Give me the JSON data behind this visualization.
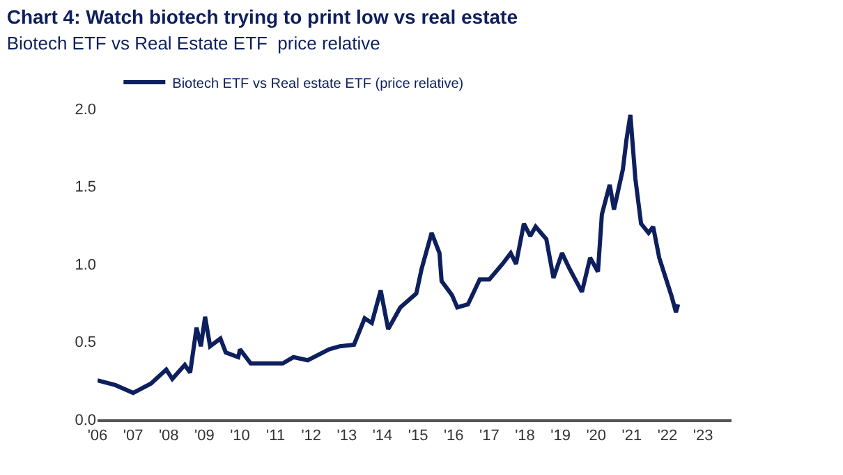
{
  "chart_data": {
    "type": "line",
    "title": "Chart 4: Watch biotech trying to print low vs real estate",
    "subtitle": "Biotech ETF vs Real Estate ETF  price relative",
    "x": [
      2006.0,
      2006.5,
      2007.0,
      2007.5,
      2007.93,
      2008.1,
      2008.45,
      2008.6,
      2008.78,
      2008.9,
      2009.02,
      2009.16,
      2009.45,
      2009.6,
      2009.95,
      2010.0,
      2010.3,
      2011.2,
      2011.5,
      2011.9,
      2012.5,
      2012.8,
      2013.2,
      2013.5,
      2013.7,
      2013.95,
      2014.16,
      2014.5,
      2014.95,
      2015.1,
      2015.38,
      2015.6,
      2015.66,
      2015.95,
      2016.1,
      2016.4,
      2016.73,
      2017.0,
      2017.37,
      2017.6,
      2017.75,
      2017.97,
      2018.15,
      2018.3,
      2018.6,
      2018.8,
      2019.04,
      2019.25,
      2019.6,
      2019.83,
      2020.05,
      2020.16,
      2020.38,
      2020.5,
      2020.75,
      2020.85,
      2020.96,
      2021.1,
      2021.26,
      2021.47,
      2021.6,
      2021.77,
      2021.98,
      2022.12,
      2022.24,
      2022.3
    ],
    "series": [
      {
        "name": "Biotech ETF vs Real estate ETF (price relative)",
        "color": "#0d1f5c",
        "values": [
          0.25,
          0.22,
          0.17,
          0.23,
          0.32,
          0.26,
          0.35,
          0.3,
          0.59,
          0.47,
          0.66,
          0.47,
          0.52,
          0.43,
          0.4,
          0.45,
          0.36,
          0.36,
          0.4,
          0.38,
          0.45,
          0.47,
          0.48,
          0.65,
          0.62,
          0.83,
          0.58,
          0.72,
          0.81,
          0.97,
          1.2,
          1.07,
          0.89,
          0.8,
          0.72,
          0.74,
          0.9,
          0.9,
          1.0,
          1.07,
          1.0,
          1.26,
          1.18,
          1.24,
          1.16,
          0.91,
          1.07,
          0.97,
          0.82,
          1.04,
          0.95,
          1.32,
          1.51,
          1.35,
          1.61,
          1.8,
          1.96,
          1.55,
          1.26,
          1.2,
          1.24,
          1.04,
          0.89,
          0.79,
          0.69,
          0.74
        ]
      }
    ],
    "xlim": [
      2006,
      2023.8
    ],
    "xticks": [
      {
        "value": 2006,
        "label": "'06"
      },
      {
        "value": 2007,
        "label": "'07"
      },
      {
        "value": 2008,
        "label": "'08"
      },
      {
        "value": 2009,
        "label": "'09"
      },
      {
        "value": 2010,
        "label": "'10"
      },
      {
        "value": 2011,
        "label": "'11"
      },
      {
        "value": 2012,
        "label": "'12"
      },
      {
        "value": 2013,
        "label": "'13"
      },
      {
        "value": 2014,
        "label": "'14"
      },
      {
        "value": 2015,
        "label": "'15"
      },
      {
        "value": 2016,
        "label": "'16"
      },
      {
        "value": 2017,
        "label": "'17"
      },
      {
        "value": 2018,
        "label": "'18"
      },
      {
        "value": 2019,
        "label": "'19"
      },
      {
        "value": 2020,
        "label": "'20"
      },
      {
        "value": 2021,
        "label": "'21"
      },
      {
        "value": 2022,
        "label": "'22"
      },
      {
        "value": 2023,
        "label": "'23"
      }
    ],
    "ylim": [
      0,
      2
    ],
    "yticks": [
      {
        "value": 0,
        "label": "0.0"
      },
      {
        "value": 0.5,
        "label": "0.5"
      },
      {
        "value": 1,
        "label": "1.0"
      },
      {
        "value": 1.5,
        "label": "1.5"
      },
      {
        "value": 2,
        "label": "2.0"
      }
    ],
    "legend": "top",
    "marker": "none",
    "line_style": "solid"
  }
}
